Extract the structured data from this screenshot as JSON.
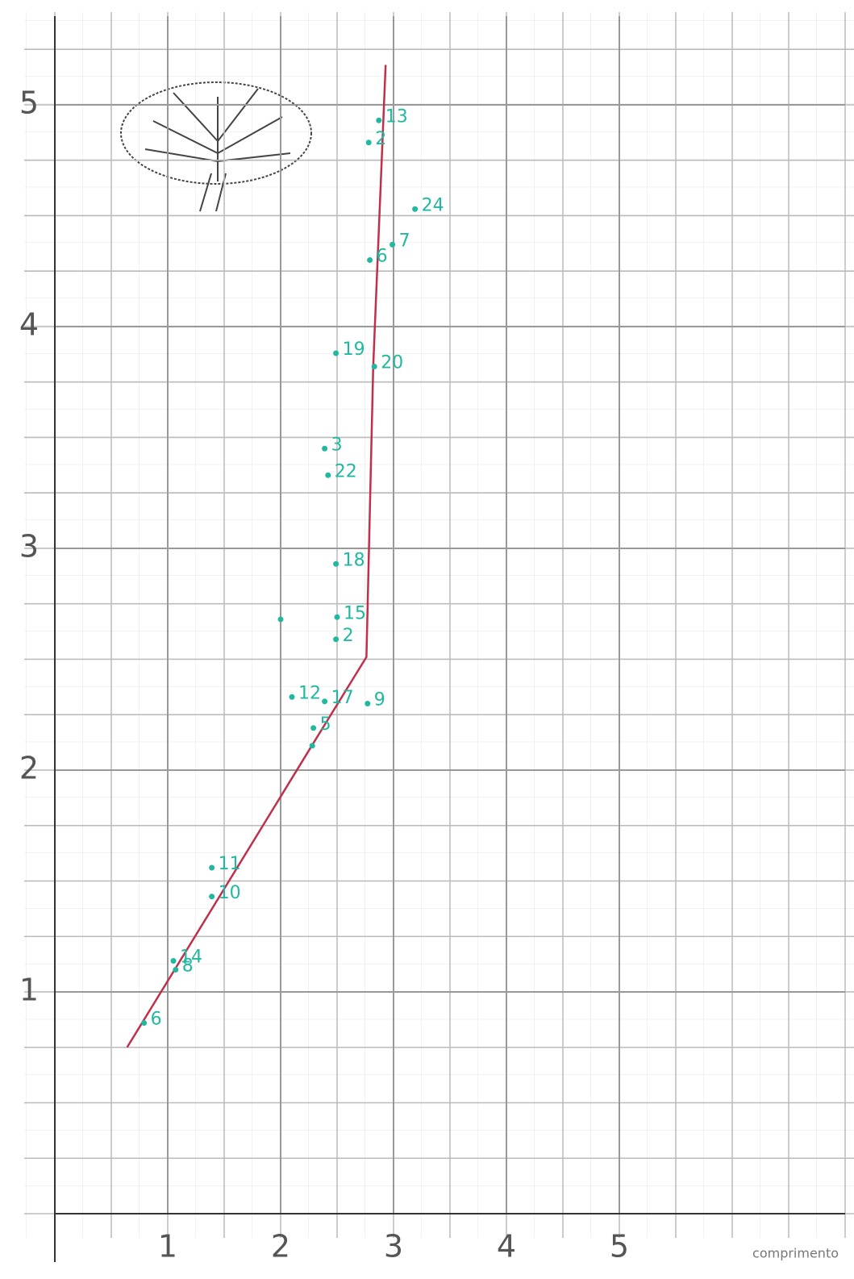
{
  "chart_data": {
    "type": "scatter",
    "x_label": "comprimento",
    "xlim": [
      0,
      7
    ],
    "ylim": [
      0,
      5.4
    ],
    "xticks": [
      1,
      2,
      3,
      4,
      5
    ],
    "yticks": [
      1,
      2,
      3,
      4,
      5
    ],
    "grid": true,
    "points": {
      "color": "#22b8a0",
      "x": [
        2.87,
        2.78,
        3.19,
        2.99,
        2.79,
        2.49,
        2.83,
        2.39,
        2.42,
        2.49,
        2.5,
        2.49,
        2.0,
        2.1,
        2.39,
        2.77,
        2.29,
        2.28,
        1.39,
        1.39,
        1.05,
        1.07,
        0.79
      ],
      "y": [
        4.93,
        4.83,
        4.53,
        4.37,
        4.3,
        3.88,
        3.82,
        3.45,
        3.33,
        2.93,
        2.69,
        2.59,
        2.68,
        2.33,
        2.31,
        2.3,
        2.19,
        2.11,
        1.56,
        1.43,
        1.14,
        1.1,
        0.86
      ],
      "labels": [
        "13",
        "2",
        "24",
        "7",
        "6",
        "19",
        "20",
        "3",
        "22",
        "18",
        "15",
        "2",
        null,
        "12",
        "17",
        "9",
        "5",
        null,
        "11",
        "10",
        "14",
        "8",
        "6"
      ]
    },
    "trend": {
      "color": "#c0304a",
      "x": [
        0.64,
        2.3,
        2.76,
        2.82,
        2.93
      ],
      "y": [
        0.75,
        2.13,
        2.51,
        3.82,
        5.18
      ]
    }
  }
}
